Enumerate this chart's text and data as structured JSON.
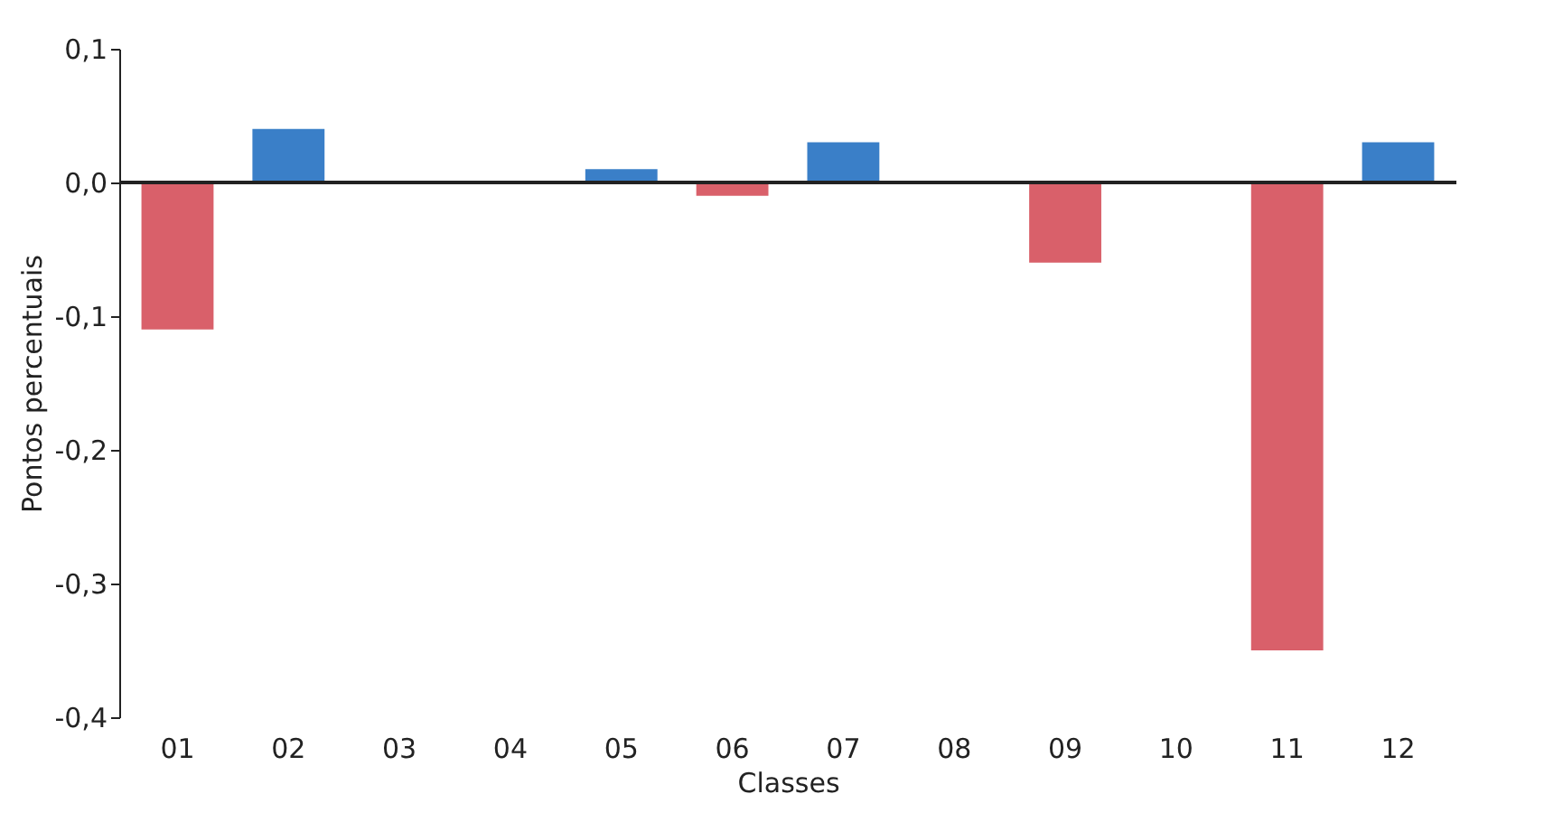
{
  "chart_data": {
    "type": "bar",
    "categories": [
      "01",
      "02",
      "03",
      "04",
      "05",
      "06",
      "07",
      "08",
      "09",
      "10",
      "11",
      "12"
    ],
    "values": [
      -0.11,
      0.04,
      null,
      null,
      0.01,
      -0.01,
      0.03,
      null,
      -0.06,
      null,
      -0.35,
      0.03
    ],
    "colors": [
      "#d9606a",
      "#3a7fc8",
      "#d9606a",
      "#d9606a",
      "#3a7fc8",
      "#d9606a",
      "#3a7fc8",
      "#d9606a",
      "#d9606a",
      "#d9606a",
      "#d9606a",
      "#3a7fc8"
    ],
    "xlabel": "Classes",
    "ylabel": "Pontos percentuais",
    "ylim": [
      -0.4,
      0.1
    ],
    "yticks": [
      {
        "value": -0.4,
        "label": "-0,4"
      },
      {
        "value": -0.3,
        "label": "-0,3"
      },
      {
        "value": -0.2,
        "label": "-0,2"
      },
      {
        "value": -0.1,
        "label": "-0,1"
      },
      {
        "value": 0,
        "label": "0,0"
      },
      {
        "value": 0.1,
        "label": "0,1"
      }
    ],
    "ref_lines": [
      {
        "axis": "y",
        "value": 0,
        "color": "#222222"
      }
    ],
    "grid": false
  }
}
